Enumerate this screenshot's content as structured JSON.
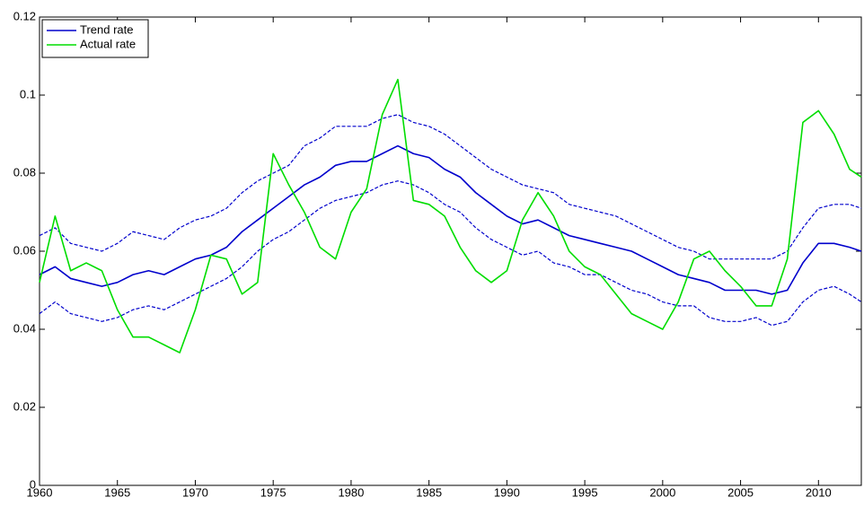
{
  "chart_data": {
    "type": "line",
    "x": [
      1960,
      1961,
      1962,
      1963,
      1964,
      1965,
      1966,
      1967,
      1968,
      1969,
      1970,
      1971,
      1972,
      1973,
      1974,
      1975,
      1976,
      1977,
      1978,
      1979,
      1980,
      1981,
      1982,
      1983,
      1984,
      1985,
      1986,
      1987,
      1988,
      1989,
      1990,
      1991,
      1992,
      1993,
      1994,
      1995,
      1996,
      1997,
      1998,
      1999,
      2000,
      2001,
      2002,
      2003,
      2004,
      2005,
      2006,
      2007,
      2008,
      2009,
      2010,
      2011,
      2012,
      2012.75
    ],
    "series": [
      {
        "name": "Trend rate",
        "color": "#0000cc",
        "dashed": false,
        "values": [
          0.054,
          0.056,
          0.053,
          0.052,
          0.051,
          0.052,
          0.054,
          0.055,
          0.054,
          0.056,
          0.058,
          0.059,
          0.061,
          0.065,
          0.068,
          0.071,
          0.074,
          0.077,
          0.079,
          0.082,
          0.083,
          0.083,
          0.085,
          0.087,
          0.085,
          0.084,
          0.081,
          0.079,
          0.075,
          0.072,
          0.069,
          0.067,
          0.068,
          0.066,
          0.064,
          0.063,
          0.062,
          0.061,
          0.06,
          0.058,
          0.056,
          0.054,
          0.053,
          0.052,
          0.05,
          0.05,
          0.05,
          0.049,
          0.05,
          0.057,
          0.062,
          0.062,
          0.061,
          0.06
        ]
      },
      {
        "name": "Actual rate",
        "color": "#00dd00",
        "dashed": false,
        "values": [
          0.052,
          0.069,
          0.055,
          0.057,
          0.055,
          0.045,
          0.038,
          0.038,
          0.036,
          0.034,
          0.045,
          0.059,
          0.058,
          0.049,
          0.052,
          0.085,
          0.077,
          0.07,
          0.061,
          0.058,
          0.07,
          0.076,
          0.095,
          0.104,
          0.073,
          0.072,
          0.069,
          0.061,
          0.055,
          0.052,
          0.055,
          0.068,
          0.075,
          0.069,
          0.06,
          0.056,
          0.054,
          0.049,
          0.044,
          0.042,
          0.04,
          0.047,
          0.058,
          0.06,
          0.055,
          0.051,
          0.046,
          0.046,
          0.058,
          0.093,
          0.096,
          0.09,
          0.081,
          0.079
        ]
      },
      {
        "color": "#0000cc",
        "dashed": true,
        "values": [
          0.064,
          0.066,
          0.062,
          0.061,
          0.06,
          0.062,
          0.065,
          0.064,
          0.063,
          0.066,
          0.068,
          0.069,
          0.071,
          0.075,
          0.078,
          0.08,
          0.082,
          0.087,
          0.089,
          0.092,
          0.092,
          0.092,
          0.094,
          0.095,
          0.093,
          0.092,
          0.09,
          0.087,
          0.084,
          0.081,
          0.079,
          0.077,
          0.076,
          0.075,
          0.072,
          0.071,
          0.07,
          0.069,
          0.067,
          0.065,
          0.063,
          0.061,
          0.06,
          0.058,
          0.058,
          0.058,
          0.058,
          0.058,
          0.06,
          0.066,
          0.071,
          0.072,
          0.072,
          0.071
        ]
      },
      {
        "color": "#0000cc",
        "dashed": true,
        "values": [
          0.044,
          0.047,
          0.044,
          0.043,
          0.042,
          0.043,
          0.045,
          0.046,
          0.045,
          0.047,
          0.049,
          0.051,
          0.053,
          0.056,
          0.06,
          0.063,
          0.065,
          0.068,
          0.071,
          0.073,
          0.074,
          0.075,
          0.077,
          0.078,
          0.077,
          0.075,
          0.072,
          0.07,
          0.066,
          0.063,
          0.061,
          0.059,
          0.06,
          0.057,
          0.056,
          0.054,
          0.054,
          0.052,
          0.05,
          0.049,
          0.047,
          0.046,
          0.046,
          0.043,
          0.042,
          0.042,
          0.043,
          0.041,
          0.042,
          0.047,
          0.05,
          0.051,
          0.049,
          0.047
        ]
      }
    ],
    "xlim": [
      1960,
      2012.75
    ],
    "ylim": [
      0,
      0.12
    ],
    "xticks": [
      1960,
      1965,
      1970,
      1975,
      1980,
      1985,
      1990,
      1995,
      2000,
      2005,
      2010
    ],
    "yticks": [
      0,
      0.02,
      0.04,
      0.06,
      0.08,
      0.1,
      0.12
    ],
    "grid": false,
    "legend": "upper-left"
  }
}
